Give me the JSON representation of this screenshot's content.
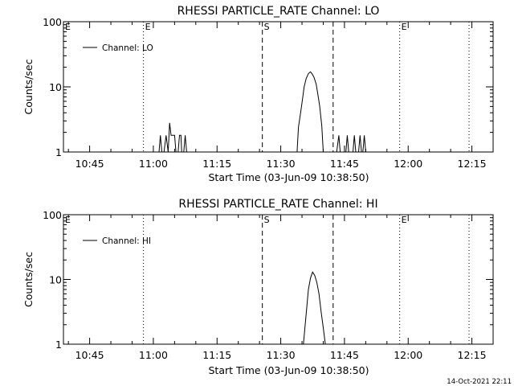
{
  "chart_data": [
    {
      "type": "line",
      "title": "RHESSI PARTICLE_RATE Channel: LO",
      "xlabel": "Start Time (03-Jun-09 10:38:50)",
      "ylabel": "Counts/sec",
      "ylog": true,
      "ylim": [
        1,
        100
      ],
      "xlim": [
        "10:38:50",
        "12:20:00"
      ],
      "x_ticks": [
        "10:45",
        "11:00",
        "11:15",
        "11:30",
        "11:45",
        "12:00",
        "12:15"
      ],
      "y_ticks": [
        "1",
        "10",
        "100"
      ],
      "legend": "Channel: LO",
      "legend_position": "top-left",
      "vlines": [
        {
          "x": "10:57:40",
          "style": "dotted",
          "label": "E"
        },
        {
          "x": "11:25:40",
          "style": "dashed",
          "label": "S"
        },
        {
          "x": "11:42:20",
          "style": "dashed",
          "label": ""
        },
        {
          "x": "11:58:00",
          "style": "dotted",
          "label": "E"
        },
        {
          "x": "12:14:20",
          "style": "dotted",
          "label": ""
        }
      ],
      "corner_labels": [
        {
          "x": "10:38:50",
          "label": "E"
        }
      ],
      "series": [
        {
          "x": [
            "11:01:20",
            "11:01:40",
            "11:02:00",
            "11:02:30",
            "11:03:00",
            "11:03:30",
            "11:03:50",
            "11:04:10",
            "11:04:30",
            "11:04:40",
            "11:05:00",
            "11:05:20",
            "11:05:50",
            "11:06:10",
            "11:06:30",
            "11:06:40",
            "11:07:10",
            "11:07:30",
            "11:07:50",
            "11:08:10",
            "11:33:50",
            "11:34:10",
            "11:34:40",
            "11:35:10",
            "11:35:30",
            "11:36:00",
            "11:36:30",
            "11:37:00",
            "11:37:20",
            "11:37:50",
            "11:38:20",
            "11:38:50",
            "11:39:10",
            "11:39:40",
            "11:40:00",
            "11:43:10",
            "11:43:40",
            "11:44:00",
            "11:44:20",
            "11:45:20",
            "11:45:40",
            "11:46:00",
            "11:47:00",
            "11:47:20",
            "11:47:40",
            "11:48:20",
            "11:48:40",
            "11:49:00",
            "11:49:20",
            "11:49:40",
            "11:50:00"
          ],
          "y": [
            1,
            1.8,
            1,
            1,
            1.8,
            1,
            2.8,
            1.8,
            1.8,
            1.8,
            1.8,
            1,
            1,
            1.8,
            1.8,
            1,
            1,
            1.8,
            1,
            1,
            1,
            2.4,
            4,
            6.8,
            10,
            13.5,
            16,
            17,
            16,
            14,
            11,
            7,
            5,
            2.5,
            1,
            1,
            1.8,
            1,
            1,
            1,
            1.8,
            1,
            1,
            1.8,
            1,
            1,
            1.8,
            1,
            1,
            1.8,
            1
          ]
        }
      ]
    },
    {
      "type": "line",
      "title": "RHESSI PARTICLE_RATE Channel: HI",
      "xlabel": "Start Time (03-Jun-09 10:38:50)",
      "ylabel": "Counts/sec",
      "ylog": true,
      "ylim": [
        1,
        100
      ],
      "xlim": [
        "10:38:50",
        "12:20:00"
      ],
      "x_ticks": [
        "10:45",
        "11:00",
        "11:15",
        "11:30",
        "11:45",
        "12:00",
        "12:15"
      ],
      "y_ticks": [
        "1",
        "10",
        "100"
      ],
      "legend": "Channel: HI",
      "legend_position": "top-left",
      "vlines": [
        {
          "x": "10:57:40",
          "style": "dotted",
          "label": ""
        },
        {
          "x": "11:25:40",
          "style": "dashed",
          "label": "S"
        },
        {
          "x": "11:42:20",
          "style": "dashed",
          "label": ""
        },
        {
          "x": "11:58:00",
          "style": "dotted",
          "label": "E"
        },
        {
          "x": "12:14:20",
          "style": "dotted",
          "label": ""
        }
      ],
      "corner_labels": [
        {
          "x": "10:38:50",
          "label": "E"
        }
      ],
      "series": [
        {
          "x": [
            "11:35:20",
            "11:36:00",
            "11:36:30",
            "11:37:00",
            "11:37:30",
            "11:38:00",
            "11:38:30",
            "11:39:00",
            "11:39:30",
            "11:40:00",
            "11:40:30"
          ],
          "y": [
            1,
            3,
            7,
            10.5,
            13,
            11.5,
            9,
            6,
            3.2,
            1.8,
            1
          ]
        }
      ]
    }
  ],
  "footer": {
    "timestamp": "14-Oct-2021 22:11"
  }
}
